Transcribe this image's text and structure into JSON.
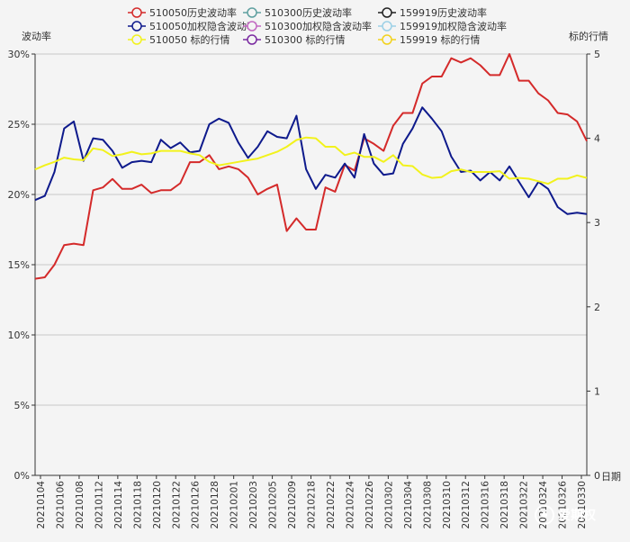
{
  "chart_data": {
    "type": "line",
    "title": "",
    "ylabel_left": "波动率",
    "ylabel_right": "标的行情",
    "xlabel": "日期",
    "y_left_ticks": [
      "0%",
      "5%",
      "10%",
      "15%",
      "20%",
      "25%",
      "30%"
    ],
    "y_left_range": [
      0,
      30
    ],
    "y_right_ticks": [
      "0",
      "1",
      "2",
      "3",
      "4",
      "5"
    ],
    "y_right_range": [
      0,
      5
    ],
    "x_tick_labels": [
      "20210104",
      "20210106",
      "20210108",
      "20210112",
      "20210114",
      "20210118",
      "20210120",
      "20210122",
      "20210126",
      "20210128",
      "20210201",
      "20210203",
      "20210205",
      "20210209",
      "20210218",
      "20210222",
      "20210224",
      "20210226",
      "20210302",
      "20210304",
      "20210308",
      "20210310",
      "20210312",
      "20210316",
      "20210318",
      "20210322",
      "20210324",
      "20210326",
      "20210330"
    ],
    "legend": [
      {
        "name": "510050历史波动率",
        "color": "#d42a2a"
      },
      {
        "name": "510050加权隐含波动率",
        "color": "#0e1a8c"
      },
      {
        "name": "510050 标的行情",
        "color": "#f2f21c"
      },
      {
        "name": "510300历史波动率",
        "color": "#5fa0a0"
      },
      {
        "name": "510300加权隐含波动率",
        "color": "#c267c2"
      },
      {
        "name": "510300 标的行情",
        "color": "#7a2aa0"
      },
      {
        "name": "159919历史波动率",
        "color": "#222222"
      },
      {
        "name": "159919加权隐含波动率",
        "color": "#9cd0e6"
      },
      {
        "name": "159919 标的行情",
        "color": "#f2d21c"
      }
    ],
    "series": [
      {
        "name": "510050历史波动率",
        "axis": "left",
        "color": "#d42a2a",
        "values": [
          14.0,
          14.1,
          15.0,
          16.4,
          16.5,
          16.4,
          20.3,
          20.5,
          21.1,
          20.4,
          20.4,
          20.7,
          20.1,
          20.3,
          20.3,
          20.8,
          22.3,
          22.3,
          22.8,
          21.8,
          22.0,
          21.8,
          21.2,
          20.0,
          20.4,
          20.7,
          17.4,
          18.3,
          17.5,
          17.5,
          20.5,
          20.2,
          22.1,
          21.7,
          24.0,
          23.6,
          23.1,
          24.9,
          25.8,
          25.8,
          27.9,
          28.4,
          28.4,
          29.7,
          29.4,
          29.7,
          29.2,
          28.5,
          28.5,
          30.0,
          28.1,
          28.1,
          27.2,
          26.7,
          25.8,
          25.7,
          25.2,
          23.8
        ]
      },
      {
        "name": "510050加权隐含波动率",
        "axis": "left",
        "color": "#0e1a8c",
        "values": [
          19.6,
          19.9,
          21.6,
          24.7,
          25.2,
          22.4,
          24.0,
          23.9,
          23.1,
          21.9,
          22.3,
          22.4,
          22.3,
          23.9,
          23.3,
          23.7,
          23.0,
          23.1,
          25.0,
          25.4,
          25.1,
          23.7,
          22.6,
          23.4,
          24.5,
          24.1,
          24.0,
          25.6,
          21.8,
          20.4,
          21.4,
          21.2,
          22.2,
          21.2,
          24.3,
          22.2,
          21.4,
          21.5,
          23.6,
          24.7,
          26.2,
          25.4,
          24.5,
          22.7,
          21.6,
          21.7,
          21.0,
          21.6,
          21.0,
          22.0,
          20.9,
          19.8,
          20.9,
          20.4,
          19.1,
          18.6,
          18.7,
          18.6
        ]
      },
      {
        "name": "510050 标的行情",
        "axis": "right",
        "color": "#f2f21c",
        "values": [
          3.63,
          3.68,
          3.72,
          3.77,
          3.75,
          3.74,
          3.88,
          3.86,
          3.79,
          3.81,
          3.84,
          3.81,
          3.82,
          3.85,
          3.85,
          3.85,
          3.82,
          3.8,
          3.72,
          3.68,
          3.7,
          3.72,
          3.74,
          3.76,
          3.8,
          3.84,
          3.9,
          3.98,
          4.01,
          4.0,
          3.9,
          3.9,
          3.8,
          3.83,
          3.78,
          3.78,
          3.72,
          3.8,
          3.68,
          3.67,
          3.57,
          3.53,
          3.54,
          3.61,
          3.63,
          3.6,
          3.6,
          3.6,
          3.61,
          3.52,
          3.53,
          3.52,
          3.49,
          3.46,
          3.52,
          3.52,
          3.56,
          3.53
        ]
      }
    ],
    "watermark": "爱期权"
  }
}
